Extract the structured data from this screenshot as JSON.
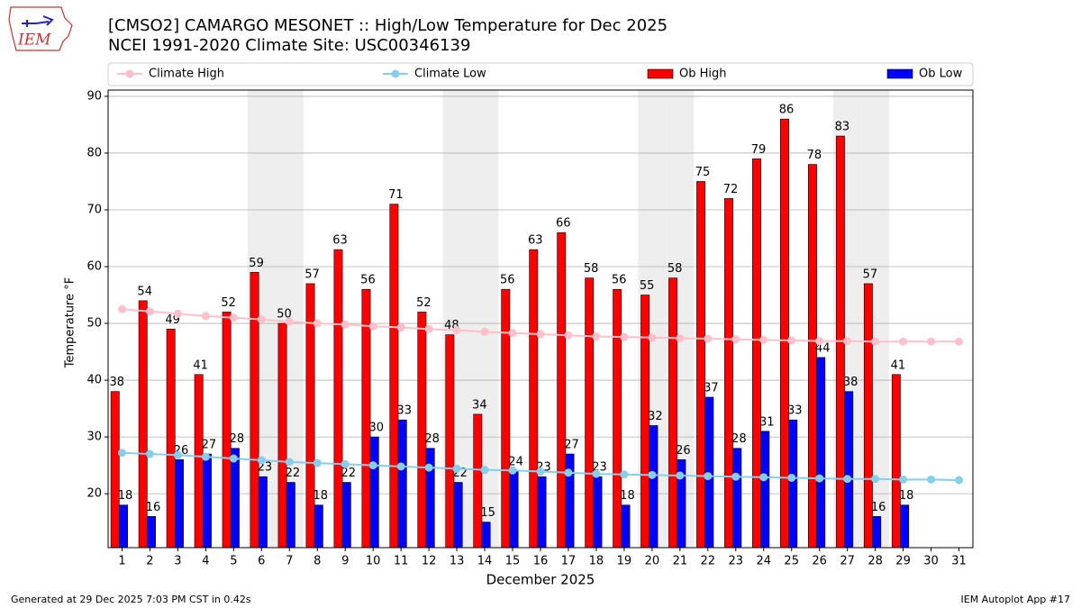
{
  "logo_text": "IEM",
  "footer_left": "Generated at 29 Dec 2025 7:03 PM CST in 0.42s",
  "footer_right": "IEM Autoplot App #17",
  "chart_data": {
    "type": "bar",
    "title": "[CMSO2] CAMARGO MESONET :: High/Low Temperature for Dec 2025",
    "subtitle": "NCEI 1991-2020 Climate Site: USC00346139",
    "x_label": "December 2025",
    "y_label": "Temperature °F",
    "categories": [
      "1",
      "2",
      "3",
      "4",
      "5",
      "6",
      "7",
      "8",
      "9",
      "10",
      "11",
      "12",
      "13",
      "14",
      "15",
      "16",
      "17",
      "18",
      "19",
      "20",
      "21",
      "22",
      "23",
      "24",
      "25",
      "26",
      "27",
      "28",
      "29",
      "30",
      "31"
    ],
    "shaded_categories": [
      "6",
      "7",
      "13",
      "14",
      "20",
      "21",
      "27",
      "28"
    ],
    "ylim": [
      10.5,
      91.1
    ],
    "yticks": [
      20,
      30,
      40,
      50,
      60,
      70,
      80,
      90
    ],
    "grid": true,
    "legend": "top",
    "series": [
      {
        "name": "Climate High",
        "kind": "line",
        "color": "#ffc0cb",
        "values": [
          52.5,
          52.1,
          51.7,
          51.3,
          51.0,
          50.7,
          50.3,
          50.0,
          49.8,
          49.5,
          49.3,
          49.0,
          48.8,
          48.5,
          48.3,
          48.1,
          47.9,
          47.7,
          47.6,
          47.5,
          47.4,
          47.3,
          47.2,
          47.1,
          47.0,
          46.9,
          46.9,
          46.8,
          46.8,
          46.8,
          46.8
        ]
      },
      {
        "name": "Climate Low",
        "kind": "line",
        "color": "#87ceeb",
        "values": [
          27.2,
          27.0,
          26.8,
          26.5,
          26.2,
          25.9,
          25.6,
          25.4,
          25.2,
          25.0,
          24.8,
          24.6,
          24.4,
          24.2,
          24.1,
          23.9,
          23.7,
          23.5,
          23.4,
          23.3,
          23.2,
          23.1,
          23.0,
          22.9,
          22.8,
          22.7,
          22.6,
          22.6,
          22.5,
          22.5,
          22.4
        ]
      },
      {
        "name": "Ob High",
        "kind": "bar",
        "color": "#ff0000",
        "values": [
          38,
          54,
          49,
          41,
          52,
          59,
          50,
          57,
          63,
          56,
          71,
          52,
          48,
          34,
          56,
          63,
          66,
          58,
          56,
          55,
          58,
          75,
          72,
          79,
          86,
          78,
          83,
          57,
          41,
          null,
          null
        ]
      },
      {
        "name": "Ob Low",
        "kind": "bar",
        "color": "#0000ff",
        "values": [
          18,
          16,
          26,
          27,
          28,
          23,
          22,
          18,
          22,
          30,
          33,
          28,
          22,
          15,
          24,
          23,
          27,
          23,
          18,
          32,
          26,
          37,
          28,
          31,
          33,
          44,
          38,
          16,
          18,
          null,
          null
        ]
      }
    ]
  }
}
